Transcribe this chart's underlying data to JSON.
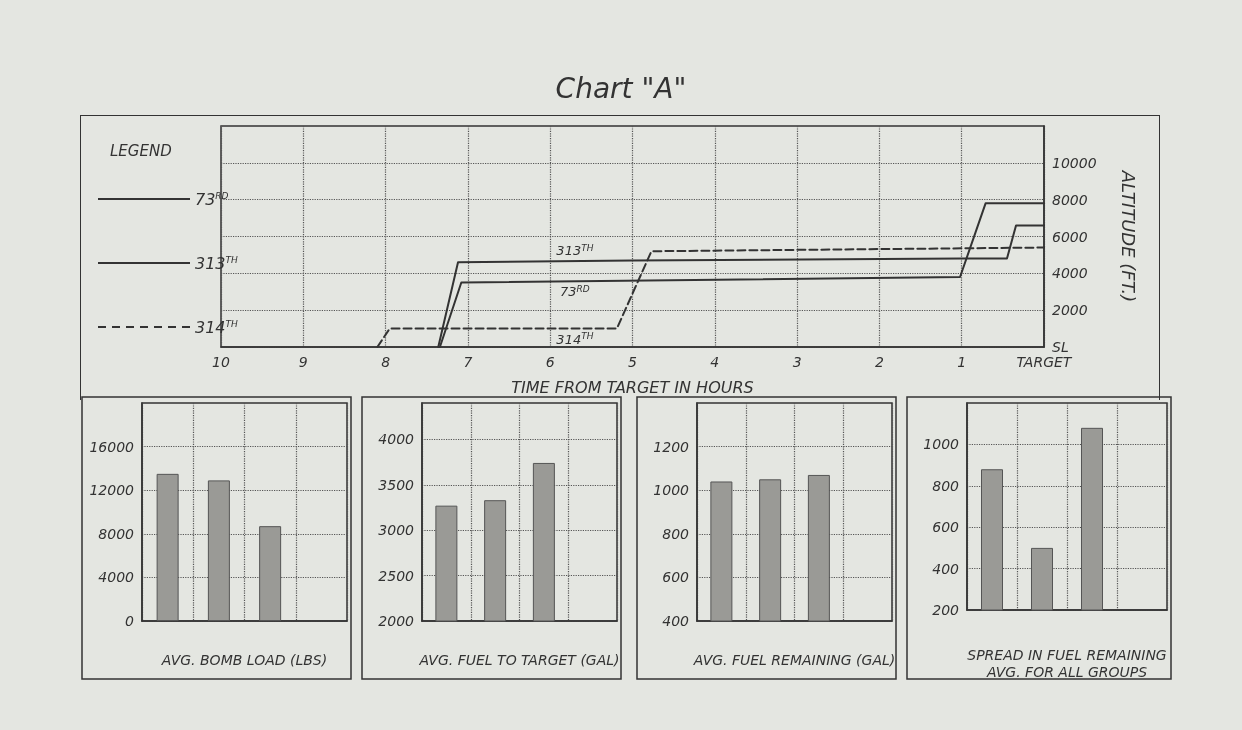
{
  "chart_data": [
    {
      "type": "line",
      "title": "Chart \"A\"",
      "xlabel": "TIME FROM TARGET IN HOURS",
      "ylabel": "ALTITUDE (FT.)",
      "legend_title": "LEGEND",
      "legend": "left",
      "grid": true,
      "marker": "none",
      "xlim": [
        10,
        0
      ],
      "xticks": [
        10,
        9,
        8,
        7,
        6,
        5,
        4,
        3,
        2,
        1,
        {
          "value": 0,
          "label": "TARGET"
        }
      ],
      "ylim": [
        0,
        12000
      ],
      "yticks": [
        {
          "value": 0,
          "label": "SL"
        },
        2000,
        4000,
        6000,
        8000,
        10000
      ],
      "series": [
        {
          "name": "73$^{RD}$",
          "color": "#333333",
          "line_style": "solid",
          "x": [
            7.34,
            7.08,
            1.02,
            0.71,
            0
          ],
          "values": [
            0,
            3500,
            3800,
            7800,
            7800
          ]
        },
        {
          "name": "313$^{TH}$",
          "color": "#333333",
          "line_style": "solid",
          "x": [
            7.36,
            7.12,
            5,
            1,
            0.45,
            0.34,
            0
          ],
          "values": [
            0,
            4600,
            4700,
            4800,
            4800,
            6600,
            6600
          ]
        },
        {
          "name": "314$^{TH}$",
          "color": "#333333",
          "line_style": "dashed",
          "x": [
            8.1,
            7.95,
            5.19,
            4.77,
            0
          ],
          "values": [
            0,
            1000,
            1000,
            5200,
            5400
          ]
        }
      ]
    },
    {
      "type": "bar",
      "xlabel": "AVG. BOMB LOAD (LBS)",
      "categories": [
        null,
        null,
        null,
        null
      ],
      "values": [
        13500,
        12900,
        8700,
        null
      ],
      "color": "#9a9a96",
      "ylim": [
        0,
        20000
      ],
      "yticks": [
        0,
        4000,
        8000,
        12000,
        16000
      ],
      "grid": true
    },
    {
      "type": "bar",
      "xlabel": "AVG. FUEL TO TARGET (GAL)",
      "categories": [
        null,
        null,
        null,
        null
      ],
      "values": [
        3270,
        3330,
        3740,
        null
      ],
      "color": "#9a9a96",
      "ylim": [
        2000,
        4400
      ],
      "yticks": [
        2000,
        2500,
        3000,
        3500,
        4000
      ],
      "grid": true
    },
    {
      "type": "bar",
      "xlabel": "AVG. FUEL REMAINING (GAL)",
      "categories": [
        null,
        null,
        null,
        null
      ],
      "values": [
        1040,
        1050,
        1070,
        null
      ],
      "color": "#9a9a96",
      "ylim": [
        400,
        1400
      ],
      "yticks": [
        400,
        600,
        800,
        1000,
        1200
      ],
      "grid": true
    },
    {
      "type": "bar",
      "xlabel": "SPREAD IN FUEL REMAINING\nAVG. FOR ALL GROUPS",
      "categories": [
        null,
        null,
        null,
        null
      ],
      "values": [
        880,
        500,
        1080,
        null
      ],
      "color": "#9a9a96",
      "ylim": [
        200,
        1200
      ],
      "yticks": [
        200,
        400,
        600,
        800,
        1000
      ],
      "grid": true
    }
  ]
}
